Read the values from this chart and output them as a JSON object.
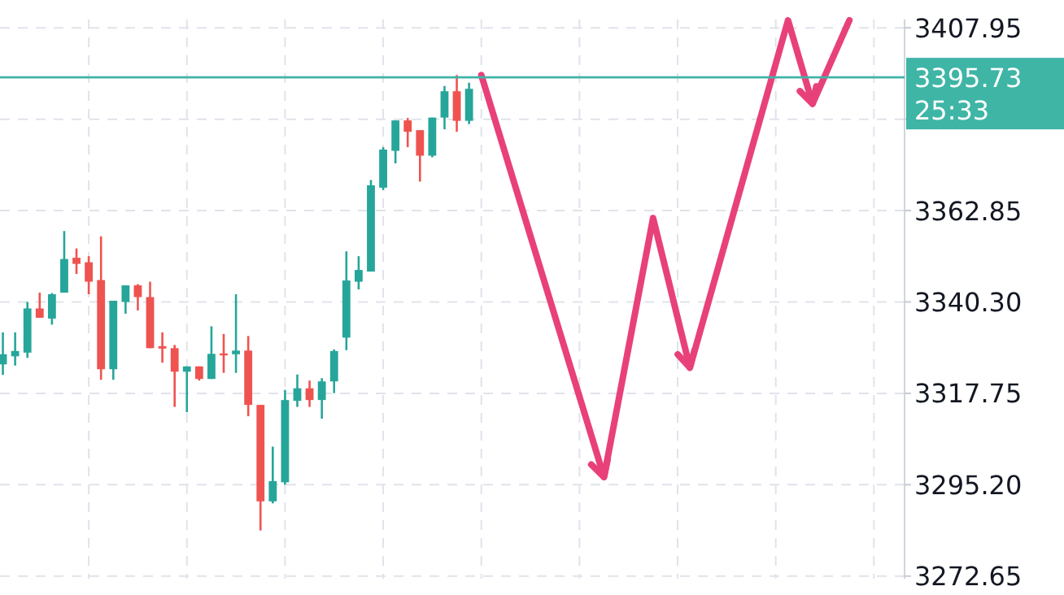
{
  "chart_data": {
    "type": "candlestick",
    "categories": [
      null,
      null,
      null,
      null,
      null,
      null,
      null,
      null,
      null,
      null,
      null,
      null,
      null,
      null,
      null,
      null,
      null,
      null,
      null,
      null,
      null,
      null,
      null,
      null,
      null,
      null,
      null,
      null,
      null,
      null,
      null,
      null,
      null,
      null,
      null,
      null,
      null,
      null,
      null,
      null,
      null,
      null,
      null,
      null,
      null,
      null,
      null,
      null,
      null,
      null,
      null,
      null,
      null,
      null,
      null,
      null,
      null,
      null,
      null,
      null,
      null,
      null,
      null,
      null,
      null,
      null,
      null,
      null,
      null,
      null,
      null,
      null,
      null,
      null
    ],
    "ohlc": [
      [
        3324.9,
        3332.8,
        3322.3,
        3327.4
      ],
      [
        3326.9,
        3332.8,
        3324.6,
        3328.2
      ],
      [
        3327.8,
        3340.3,
        3326.5,
        3338.7
      ],
      [
        3338.7,
        3342.6,
        3336.4,
        3336.4
      ],
      [
        3336.2,
        3342.5,
        3334.7,
        3342.2
      ],
      [
        3342.6,
        3357.8,
        3342.6,
        3350.9
      ],
      [
        3351.2,
        3353.5,
        3347.2,
        3349.7
      ],
      [
        3350.1,
        3351.6,
        3342.2,
        3345.3
      ],
      [
        3345.7,
        3356.5,
        3321.1,
        3323.7
      ],
      [
        3323.7,
        3340.6,
        3321.1,
        3340.6
      ],
      [
        3340.3,
        3344.4,
        3337.4,
        3344.4
      ],
      [
        3344.4,
        3344.7,
        3338.2,
        3341.5
      ],
      [
        3341.5,
        3345.3,
        3328.9,
        3328.9
      ],
      [
        3329.4,
        3332.8,
        3325.3,
        3328.8
      ],
      [
        3328.9,
        3329.7,
        3314.4,
        3323.1
      ],
      [
        3323.1,
        3324.4,
        3313.1,
        3324.4
      ],
      [
        3324.4,
        3324.4,
        3320.9,
        3321.3
      ],
      [
        3321.3,
        3334.3,
        3321.3,
        3327.5
      ],
      [
        3327.6,
        3332.4,
        3322.8,
        3327.2
      ],
      [
        3327.4,
        3342.2,
        3322.8,
        3328.3
      ],
      [
        3328.3,
        3331.9,
        3312.1,
        3314.9
      ],
      [
        3314.9,
        3314.9,
        3283.9,
        3291.1
      ],
      [
        3291.1,
        3304.6,
        3290.6,
        3296.1
      ],
      [
        3295.8,
        3318.6,
        3295.2,
        3316.1
      ],
      [
        3315.9,
        3322.4,
        3314.4,
        3319.0
      ],
      [
        3319.0,
        3320.9,
        3314.4,
        3316.1
      ],
      [
        3316.1,
        3321.5,
        3311.5,
        3320.7
      ],
      [
        3320.7,
        3328.6,
        3317.8,
        3328.2
      ],
      [
        3331.5,
        3352.8,
        3328.4,
        3345.6
      ],
      [
        3345.3,
        3351.6,
        3343.4,
        3348.2
      ],
      [
        3347.8,
        3370.4,
        3347.8,
        3369.1
      ],
      [
        3368.5,
        3378.5,
        3367.9,
        3377.9
      ],
      [
        3377.6,
        3385.1,
        3374.5,
        3385.1
      ],
      [
        3385.1,
        3385.7,
        3378.5,
        3382.3
      ],
      [
        3382.7,
        3382.7,
        3370.0,
        3376.4
      ],
      [
        3376.4,
        3385.8,
        3376.0,
        3385.8
      ],
      [
        3385.8,
        3393.6,
        3382.9,
        3392.3
      ],
      [
        3392.3,
        3396.3,
        3382.3,
        3385.0
      ],
      [
        3385.0,
        3394.4,
        3384.2,
        3392.9
      ],
      null,
      null,
      null,
      null,
      null,
      null,
      null,
      null,
      null,
      null,
      null,
      null,
      null,
      null,
      null,
      null,
      null,
      null,
      null,
      null,
      null,
      null,
      null,
      null,
      null,
      null,
      null,
      null,
      null,
      null,
      null,
      null,
      null,
      null,
      null
    ],
    "series": [
      {
        "type": "line",
        "color": "#e8417a",
        "values": [
          null,
          null,
          null,
          null,
          null,
          null,
          null,
          null,
          null,
          null,
          null,
          null,
          null,
          null,
          null,
          null,
          null,
          null,
          null,
          null,
          null,
          null,
          null,
          null,
          null,
          null,
          null,
          null,
          null,
          null,
          null,
          null,
          null,
          null,
          null,
          null,
          null,
          null,
          null,
          3396.3,
          null,
          null,
          null,
          null,
          null,
          null,
          null,
          null,
          null,
          3297.1,
          null,
          null,
          null,
          3361.0,
          null,
          null,
          3324.1,
          null,
          null,
          null,
          null,
          null,
          null,
          null,
          3409.8,
          null,
          3389.2,
          null,
          null,
          3409.8,
          null,
          null,
          null,
          null
        ]
      }
    ],
    "ylim": [
      3272,
      3410
    ],
    "yticks": [
      3272.65,
      {
        "value": 3295.2,
        "label": "3295.20"
      },
      3317.75,
      {
        "value": 3340.3,
        "label": "3340.30"
      },
      3362.85,
      {
        "value": 3385.4,
        "label": null
      },
      3407.95
    ],
    "ref_lines": [
      {
        "axis": "y",
        "value": 3395.73,
        "label": "3395.73",
        "color": "#3fb5a6"
      }
    ],
    "annotations": [
      "25:33"
    ],
    "grid": true,
    "marker": "none",
    "line_style": "solid"
  }
}
